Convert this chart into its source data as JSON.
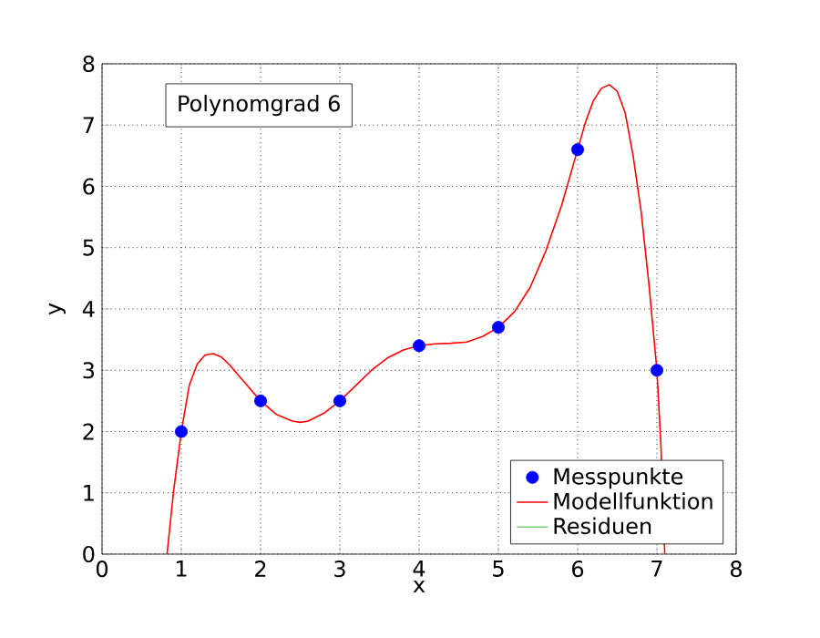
{
  "chart_data": {
    "type": "line",
    "xlabel": "x",
    "ylabel": "y",
    "xlim": [
      0,
      8
    ],
    "ylim": [
      0,
      8
    ],
    "xticks": [
      0,
      1,
      2,
      3,
      4,
      5,
      6,
      7,
      8
    ],
    "yticks": [
      0,
      1,
      2,
      3,
      4,
      5,
      6,
      7,
      8
    ],
    "grid": true,
    "legend": "bottom right",
    "annotations": [
      "Polynomgrad 6"
    ],
    "series": [
      {
        "name": "Messpunkte",
        "type": "scatter",
        "color": "#0000ff",
        "x": [
          1,
          2,
          3,
          4,
          5,
          6,
          7
        ],
        "values": [
          2,
          2.5,
          2.5,
          3.4,
          3.7,
          6.6,
          3
        ]
      },
      {
        "name": "Modellfunktion",
        "color": "#ff0000",
        "x": [
          0.82,
          0.9,
          1.0,
          1.1,
          1.2,
          1.3,
          1.4,
          1.5,
          1.6,
          1.8,
          2.0,
          2.2,
          2.4,
          2.5,
          2.6,
          2.8,
          3.0,
          3.2,
          3.4,
          3.6,
          3.8,
          4.0,
          4.2,
          4.4,
          4.6,
          4.8,
          5.0,
          5.2,
          5.4,
          5.6,
          5.8,
          6.0,
          6.1,
          6.2,
          6.3,
          6.4,
          6.5,
          6.6,
          6.7,
          6.8,
          6.9,
          7.0,
          7.05,
          7.1
        ],
        "values": [
          0,
          1.0,
          2.0,
          2.75,
          3.1,
          3.25,
          3.27,
          3.22,
          3.1,
          2.8,
          2.5,
          2.28,
          2.17,
          2.15,
          2.17,
          2.3,
          2.5,
          2.75,
          3.0,
          3.2,
          3.33,
          3.4,
          3.43,
          3.44,
          3.46,
          3.55,
          3.7,
          3.95,
          4.35,
          4.95,
          5.7,
          6.6,
          7.05,
          7.4,
          7.6,
          7.66,
          7.55,
          7.2,
          6.5,
          5.6,
          4.4,
          3,
          1.8,
          0
        ]
      },
      {
        "name": "Residuen",
        "color": "#77cc77",
        "values": [
          null,
          null,
          null,
          null,
          null,
          null,
          null
        ]
      }
    ]
  }
}
